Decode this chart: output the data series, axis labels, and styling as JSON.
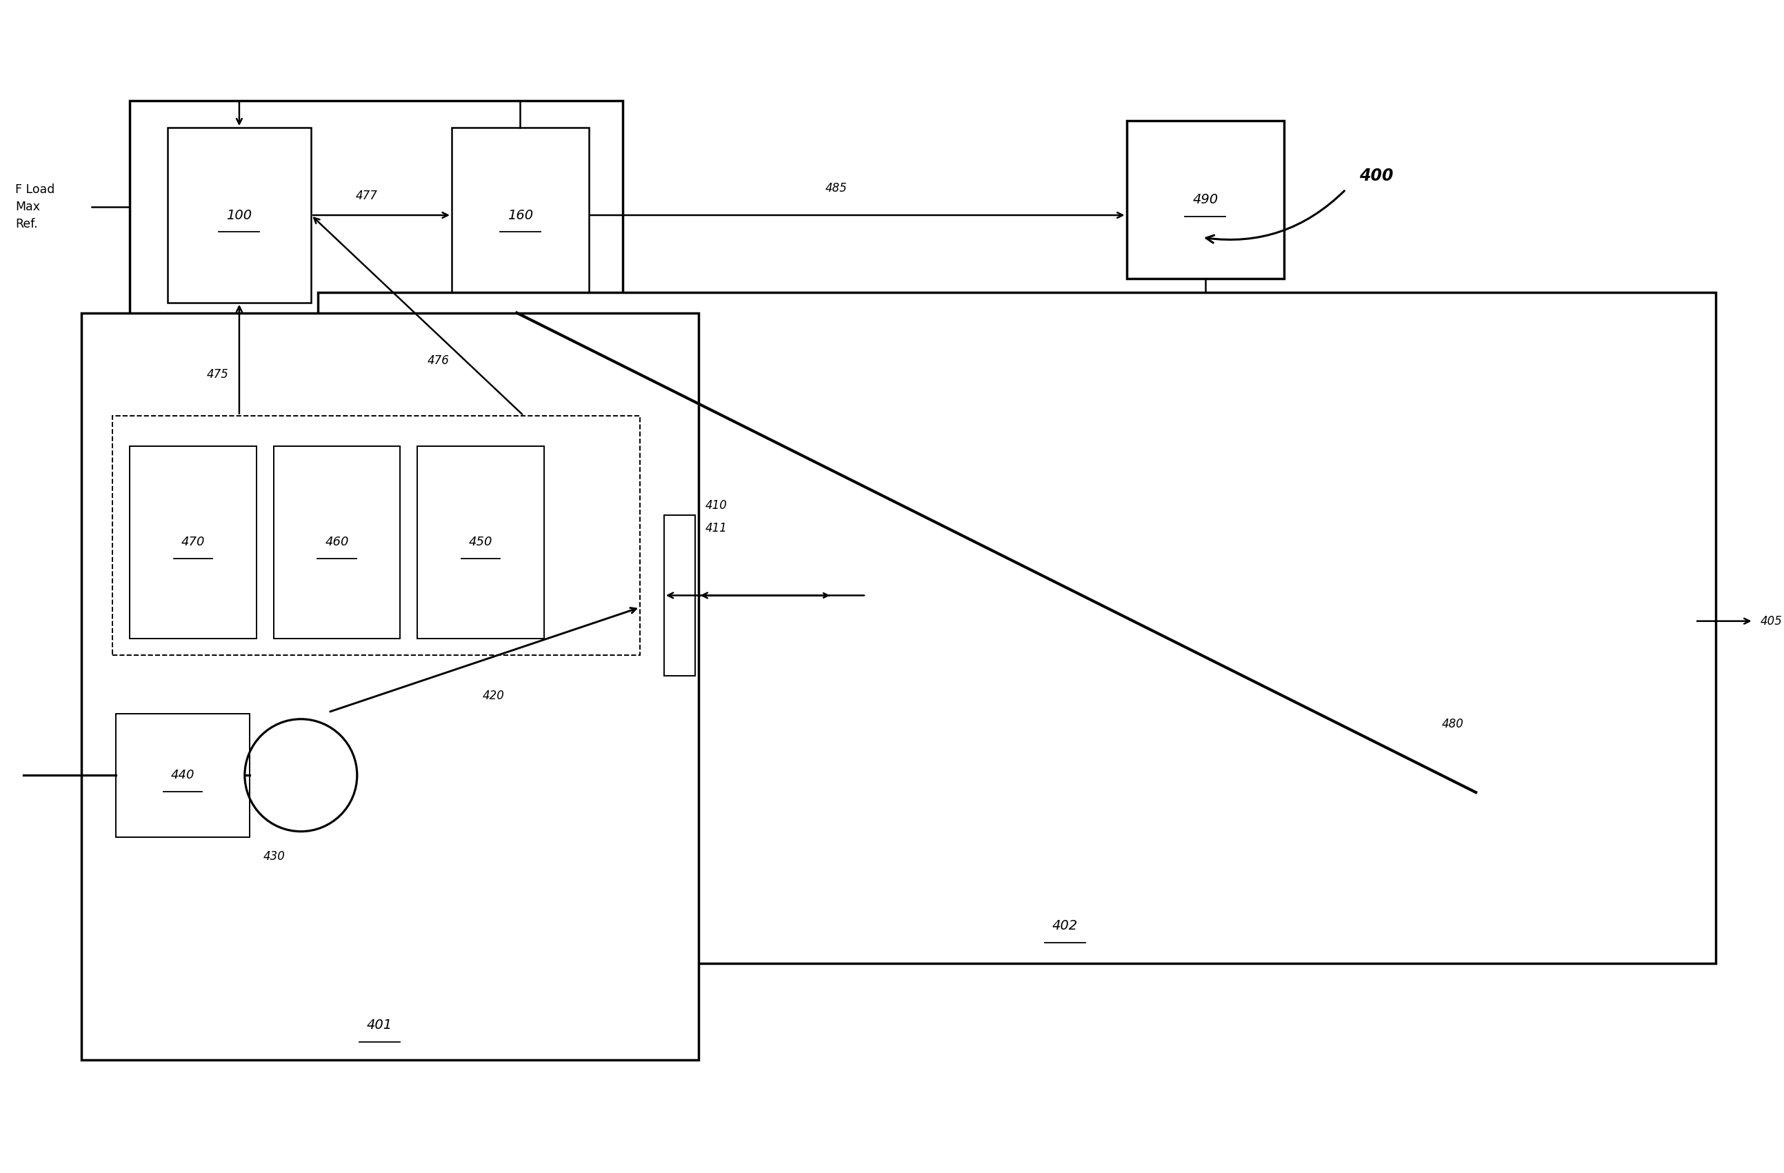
{
  "bg_color": "#ffffff",
  "fig_width": 25.87,
  "fig_height": 17.01,
  "label_400": "400",
  "label_401": "401",
  "label_402": "402",
  "label_100": "100",
  "label_160": "160",
  "label_440": "440",
  "label_430": "430",
  "label_420": "420",
  "label_470": "470",
  "label_460": "460",
  "label_450": "450",
  "label_490": "490",
  "label_475": "475",
  "label_476": "476",
  "label_477": "477",
  "label_480": "480",
  "label_485": "485",
  "label_405": "405",
  "label_410": "410",
  "label_411": "411",
  "label_fload": "F Load\nMax\nRef."
}
